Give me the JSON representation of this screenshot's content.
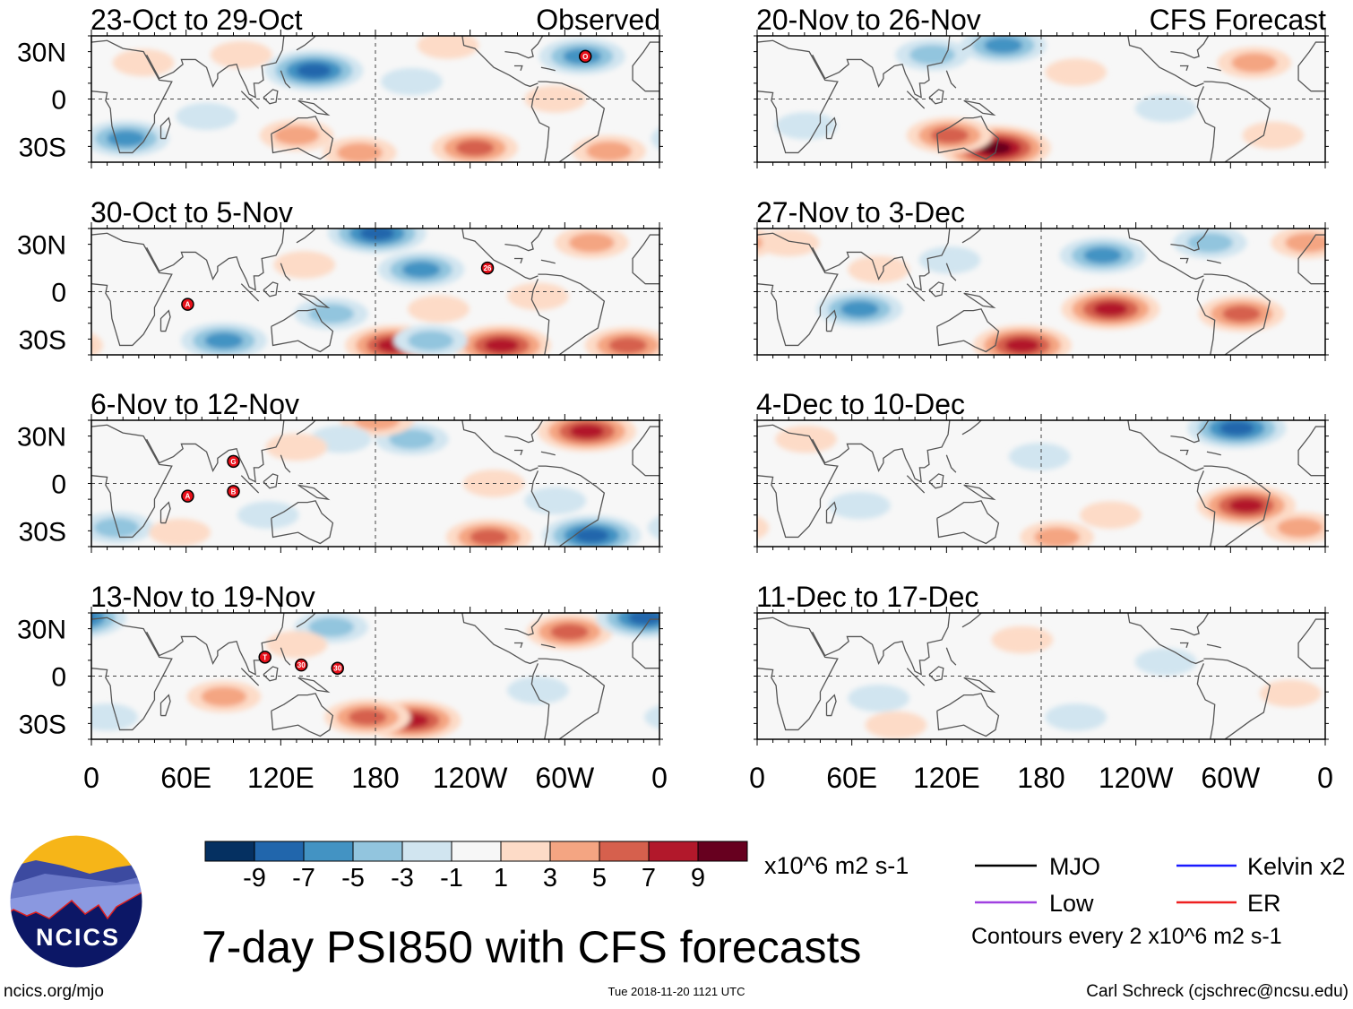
{
  "title": "7-day PSI850 with CFS forecasts",
  "units": "x10^6 m2 s-1",
  "contour_note": "Contours every 2 x10^6 m2 s-1",
  "footer": {
    "left": "ncics.org/mjo",
    "center": "Tue 2018-11-20 1121 UTC",
    "right": "Carl Schreck (cjschrec@ncsu.edu)"
  },
  "logo_text": "NCICS",
  "legend": [
    {
      "label": "MJO",
      "color": "#000000"
    },
    {
      "label": "Kelvin x2",
      "color": "#1a1aff"
    },
    {
      "label": "Low",
      "color": "#a040e0"
    },
    {
      "label": "ER",
      "color": "#ee2020"
    }
  ],
  "chart_data": {
    "type": "heatmap",
    "variable": "7-day PSI850 anomaly",
    "lat_range": [
      -40,
      40
    ],
    "lon_range": [
      0,
      360
    ],
    "lat_ticks": [
      {
        "v": 30,
        "label": "30N"
      },
      {
        "v": 0,
        "label": "0"
      },
      {
        "v": -30,
        "label": "30S"
      }
    ],
    "lon_ticks": [
      {
        "v": 0,
        "label": "0"
      },
      {
        "v": 60,
        "label": "60E"
      },
      {
        "v": 120,
        "label": "120E"
      },
      {
        "v": 180,
        "label": "180"
      },
      {
        "v": 240,
        "label": "120W"
      },
      {
        "v": 300,
        "label": "60W"
      },
      {
        "v": 360,
        "label": "0"
      }
    ],
    "colorbar": {
      "labels": [
        "-9",
        "-7",
        "-5",
        "-3",
        "-1",
        "1",
        "3",
        "5",
        "7",
        "9"
      ],
      "colors": [
        "#053061",
        "#2166ac",
        "#4393c3",
        "#92c5de",
        "#d1e5f0",
        "#f7f7f7",
        "#fddbc7",
        "#f4a582",
        "#d6604d",
        "#b2182b",
        "#67001f"
      ]
    },
    "columns": [
      {
        "label": "Observed"
      },
      {
        "label": "CFS Forecast"
      }
    ],
    "panels": [
      {
        "title": "23-Oct to 29-Oct",
        "column": 0,
        "anomalies": [
          [
            141,
            18,
            -9
          ],
          [
            311,
            27,
            -7
          ],
          [
            22,
            -25,
            -7
          ],
          [
            130,
            -23,
            5
          ],
          [
            243,
            -31,
            7
          ],
          [
            170,
            -34,
            5
          ],
          [
            328,
            -33,
            5
          ],
          [
            33,
            23,
            3
          ],
          [
            95,
            28,
            3
          ],
          [
            226,
            34,
            3
          ],
          [
            294,
            0,
            3
          ],
          [
            203,
            11,
            -3
          ],
          [
            73,
            -11,
            -3
          ]
        ],
        "storms": [
          {
            "label": "O",
            "lon": 313,
            "lat": 27
          }
        ]
      },
      {
        "title": "30-Oct to 5-Nov",
        "column": 0,
        "anomalies": [
          [
            181,
            37,
            -9
          ],
          [
            209,
            14,
            -7
          ],
          [
            84,
            -31,
            -7
          ],
          [
            192,
            -34,
            9
          ],
          [
            260,
            -34,
            9
          ],
          [
            340,
            -34,
            7
          ],
          [
            152,
            -14,
            -5
          ],
          [
            135,
            17,
            3
          ],
          [
            317,
            31,
            5
          ],
          [
            283,
            -3,
            3
          ],
          [
            220,
            -11,
            3
          ],
          [
            215,
            -31,
            -5
          ]
        ],
        "storms": [
          {
            "label": "A",
            "lon": 61,
            "lat": -8
          },
          {
            "label": "26",
            "lon": 251,
            "lat": 15
          }
        ]
      },
      {
        "title": "6-Nov to 12-Nov",
        "column": 0,
        "anomalies": [
          [
            314,
            33,
            9
          ],
          [
            317,
            -33,
            -9
          ],
          [
            252,
            -34,
            7
          ],
          [
            203,
            28,
            -5
          ],
          [
            16,
            -28,
            -5
          ],
          [
            181,
            40,
            5
          ],
          [
            158,
            28,
            -3
          ],
          [
            130,
            23,
            3
          ],
          [
            56,
            -31,
            3
          ],
          [
            255,
            0,
            3
          ],
          [
            112,
            -20,
            -3
          ],
          [
            294,
            -11,
            -3
          ]
        ],
        "storms": [
          {
            "label": "G",
            "lon": 90,
            "lat": 14
          },
          {
            "label": "A",
            "lon": 61,
            "lat": -8
          },
          {
            "label": "B",
            "lon": 90,
            "lat": -5
          }
        ]
      },
      {
        "title": "13-Nov to 19-Nov",
        "column": 0,
        "anomalies": [
          [
            303,
            28,
            7
          ],
          [
            351,
            37,
            -9
          ],
          [
            203,
            -28,
            9
          ],
          [
            175,
            -26,
            7
          ],
          [
            84,
            -13,
            5
          ],
          [
            152,
            31,
            -5
          ],
          [
            283,
            -9,
            -3
          ],
          [
            130,
            20,
            3
          ],
          [
            10,
            -26,
            -3
          ]
        ],
        "storms": [
          {
            "label": "T",
            "lon": 110,
            "lat": 12
          },
          {
            "label": "30",
            "lon": 133,
            "lat": 7
          },
          {
            "label": "30",
            "lon": 156,
            "lat": 5
          }
        ]
      },
      {
        "title": "20-Nov to 26-Nov",
        "column": 1,
        "anomalies": [
          [
            151,
            -31,
            11
          ],
          [
            122,
            -23,
            7
          ],
          [
            156,
            34,
            -7
          ],
          [
            111,
            28,
            -5
          ],
          [
            315,
            23,
            5
          ],
          [
            259,
            -6,
            -3
          ],
          [
            327,
            -23,
            3
          ],
          [
            202,
            17,
            3
          ],
          [
            31,
            -17,
            -3
          ]
        ],
        "storms": []
      },
      {
        "title": "27-Nov to 3-Dec",
        "column": 1,
        "anomalies": [
          [
            168,
            -34,
            9
          ],
          [
            224,
            -11,
            9
          ],
          [
            307,
            -14,
            7
          ],
          [
            219,
            23,
            -7
          ],
          [
            287,
            31,
            -5
          ],
          [
            65,
            -11,
            -7
          ],
          [
            122,
            20,
            -3
          ],
          [
            20,
            31,
            3
          ],
          [
            349,
            31,
            5
          ],
          [
            77,
            14,
            3
          ]
        ],
        "storms": []
      },
      {
        "title": "4-Dec to 10-Dec",
        "column": 1,
        "anomalies": [
          [
            304,
            35,
            -9
          ],
          [
            310,
            -14,
            9
          ],
          [
            344,
            -28,
            5
          ],
          [
            65,
            -14,
            -3
          ],
          [
            179,
            17,
            -3
          ],
          [
            190,
            -34,
            5
          ],
          [
            31,
            28,
            3
          ],
          [
            224,
            -20,
            3
          ]
        ],
        "storms": []
      },
      {
        "title": "11-Dec to 17-Dec",
        "column": 1,
        "anomalies": [
          [
            338,
            -11,
            3
          ],
          [
            88,
            -31,
            3
          ],
          [
            168,
            23,
            3
          ],
          [
            259,
            9,
            -3
          ],
          [
            202,
            -26,
            -3
          ],
          [
            77,
            -14,
            -3
          ]
        ],
        "storms": []
      }
    ]
  }
}
